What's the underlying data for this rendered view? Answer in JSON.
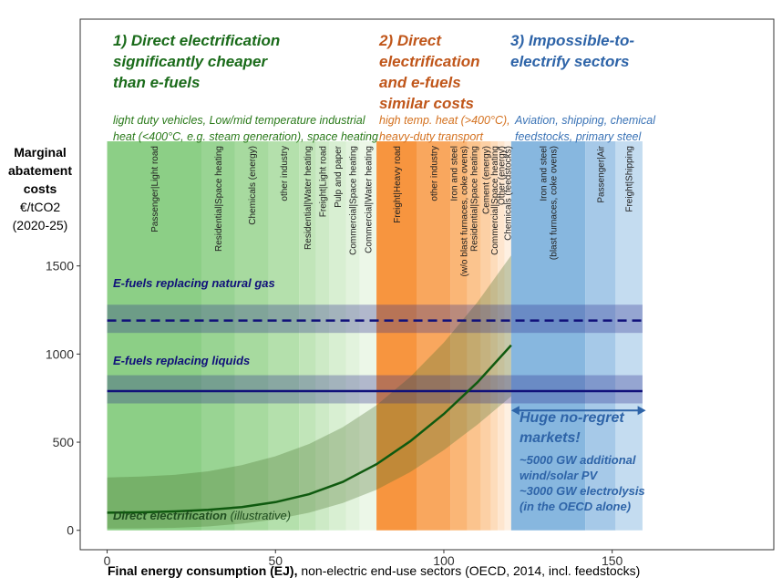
{
  "chart_data": {
    "type": "area",
    "title": "",
    "ylabel": {
      "line1": "Marginal",
      "line2": "abatement",
      "line3": "costs",
      "line4": "€/tCO2",
      "line5": "(2020-25)"
    },
    "xlabel": {
      "bold": "Final energy consumption (EJ),",
      "rest": " non-electric end-use sectors (OECD, 2014, incl. feedstocks)"
    },
    "xlim": [
      -8,
      198
    ],
    "ylim": [
      -110,
      2900
    ],
    "xticks": [
      0,
      50,
      100,
      150
    ],
    "yticks": [
      0,
      500,
      1000,
      1500
    ],
    "groups": [
      {
        "name": "direct",
        "heading": [
          "1) Direct electrification",
          "significantly cheaper",
          "than e-fuels"
        ],
        "description": [
          "light duty vehicles, Low/mid temperature industrial",
          "heat (<400°C, e.g. steam generation), space heating"
        ],
        "color": "#1a6b1a",
        "desc_color": "#2a7a1a"
      },
      {
        "name": "similar",
        "heading": [
          "2) Direct",
          "electrification",
          "and e-fuels",
          "similar costs"
        ],
        "description": [
          "high temp. heat (>400°C),",
          "heavy-duty transport"
        ],
        "color": "#c0561a",
        "desc_color": "#d4711f"
      },
      {
        "name": "impossible",
        "heading": [
          "3) Impossible-to-",
          "electrify sectors"
        ],
        "description": [
          "Aviation, shipping, chemical",
          "feedstocks, primary steel"
        ],
        "color": "#2e64a8",
        "desc_color": "#3a73b6"
      }
    ],
    "sectors": [
      {
        "name": "Passenger|Light road",
        "start": 0,
        "end": 28,
        "group": "direct",
        "color": "#8ccf86"
      },
      {
        "name": "Residential|Space heating",
        "start": 28,
        "end": 38,
        "group": "direct",
        "color": "#99d493"
      },
      {
        "name": "Chemicals (energy)",
        "start": 38,
        "end": 48,
        "group": "direct",
        "color": "#a7da9f"
      },
      {
        "name": "other industry",
        "start": 48,
        "end": 57,
        "group": "direct",
        "color": "#b4e0ac"
      },
      {
        "name": "Residential|Water heating",
        "start": 57,
        "end": 62,
        "group": "direct",
        "color": "#c1e5b9"
      },
      {
        "name": "Freight|Light road",
        "start": 62,
        "end": 66,
        "group": "direct",
        "color": "#cdeac6"
      },
      {
        "name": "Pulp and paper",
        "start": 66,
        "end": 71,
        "group": "direct",
        "color": "#d8efd2"
      },
      {
        "name": "Commercial|Space heating",
        "start": 71,
        "end": 75,
        "group": "direct",
        "color": "#e2f3dd"
      },
      {
        "name": "Commercial|Water heating",
        "start": 75,
        "end": 80,
        "group": "direct",
        "color": "#ecf7e8"
      },
      {
        "name": "Freight|Heavy road",
        "start": 80,
        "end": 92,
        "group": "similar",
        "color": "#f7953f"
      },
      {
        "name": "other industry",
        "start": 92,
        "end": 102,
        "group": "similar",
        "color": "#f9a75e"
      },
      {
        "name": "Iron and steel\n(w/o blast furnaces, coke ovens)",
        "start": 102,
        "end": 107,
        "group": "similar",
        "color": "#fab676"
      },
      {
        "name": "Residential|Space heating",
        "start": 107,
        "end": 111,
        "group": "similar",
        "color": "#fbc48e"
      },
      {
        "name": "Cement (energy)",
        "start": 111,
        "end": 114,
        "group": "similar",
        "color": "#fcd0a5"
      },
      {
        "name": "Commercial|Space heating",
        "start": 114,
        "end": 116,
        "group": "similar",
        "color": "#fddcbb"
      },
      {
        "name": "Other (energy)",
        "start": 116,
        "end": 118,
        "group": "similar",
        "color": "#fee6cf"
      },
      {
        "name": "Chemicals (feedstocks)",
        "start": 118,
        "end": 120,
        "group": "similar",
        "color": "#fef0e2"
      },
      {
        "name": "Iron and steel\n(blast furnaces, coke ovens)",
        "start": 120,
        "end": 142,
        "group": "impossible",
        "color": "#87b7df"
      },
      {
        "name": "Passenger|Air",
        "start": 142,
        "end": 151,
        "group": "impossible",
        "color": "#a6c9e8"
      },
      {
        "name": "Freight|Shipping",
        "start": 151,
        "end": 159,
        "group": "impossible",
        "color": "#c4dcf0"
      }
    ],
    "efuel_bands": [
      {
        "label": "E-fuels replacing natural gas",
        "value": 1190,
        "low": 1120,
        "high": 1280,
        "style": "dashed",
        "color": "#10107a"
      },
      {
        "label": "E-fuels replacing liquids",
        "value": 790,
        "low": 720,
        "high": 880,
        "style": "solid",
        "color": "#10107a"
      }
    ],
    "direct_electrification": {
      "label": "Direct electrification",
      "note": " (illustrative)",
      "color": "#0f5a0f",
      "x": [
        0,
        10,
        20,
        30,
        40,
        50,
        60,
        70,
        80,
        90,
        100,
        110,
        120
      ],
      "y": [
        100,
        102,
        107,
        116,
        132,
        160,
        205,
        275,
        375,
        505,
        660,
        840,
        1050
      ],
      "low": [
        10,
        11,
        14,
        22,
        38,
        62,
        100,
        155,
        230,
        330,
        455,
        600,
        760
      ],
      "high": [
        300,
        305,
        315,
        335,
        370,
        420,
        490,
        585,
        710,
        870,
        1065,
        1295,
        1560
      ]
    },
    "markets": {
      "title": [
        "Huge no-regret",
        "markets!"
      ],
      "detail": [
        "~5000 GW additional",
        "wind/solar PV",
        "~3000 GW electrolysis",
        "(in the OECD alone)"
      ],
      "arrow_from": 120,
      "arrow_to": 160,
      "arrow_y": 680,
      "color": "#2e64a8"
    }
  }
}
